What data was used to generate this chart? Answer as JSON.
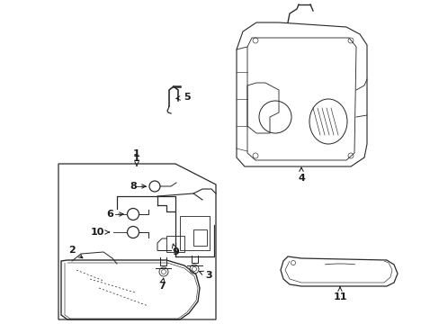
{
  "background_color": "#ffffff",
  "line_color": "#2a2a2a",
  "text_color": "#1a1a1a",
  "fig_width": 4.89,
  "fig_height": 3.6,
  "dpi": 100
}
